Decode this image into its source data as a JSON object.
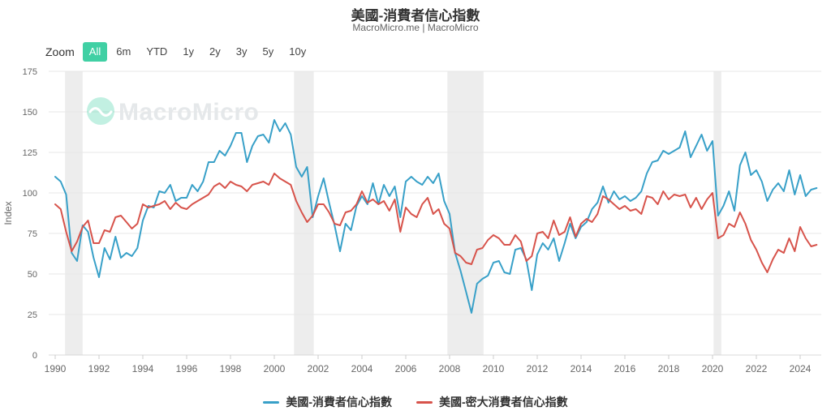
{
  "header": {
    "title": "美國-消費者信心指數",
    "subtitle": "MacroMicro.me | MacroMicro"
  },
  "toolbar": {
    "zoom_label": "Zoom",
    "ranges": [
      {
        "label": "All",
        "active": true
      },
      {
        "label": "6m",
        "active": false
      },
      {
        "label": "YTD",
        "active": false
      },
      {
        "label": "1y",
        "active": false
      },
      {
        "label": "2y",
        "active": false
      },
      {
        "label": "3y",
        "active": false
      },
      {
        "label": "5y",
        "active": false
      },
      {
        "label": "10y",
        "active": false
      }
    ],
    "active_button_color": "#40D0A4"
  },
  "watermark": {
    "text": "MacroMicro",
    "icon": "macromicro-wave-icon",
    "logo_color": "#40D0A4",
    "text_color": "#e5e8ea"
  },
  "colors": {
    "grid": "#e7e7e7",
    "axis_line": "#d8d8d8",
    "tick": "#cccccc",
    "axis_text": "#666666",
    "recession_band": "#ededed"
  },
  "chart_data": {
    "type": "line",
    "title": "美國-消費者信心指數",
    "xlabel": "",
    "ylabel": "Index",
    "ylim": [
      0,
      175
    ],
    "yticks": [
      0,
      25,
      50,
      75,
      100,
      125,
      150,
      175
    ],
    "xticks": [
      1990,
      1992,
      1994,
      1996,
      1998,
      2000,
      2002,
      2004,
      2006,
      2008,
      2010,
      2012,
      2014,
      2016,
      2018,
      2020,
      2022,
      2024
    ],
    "x_start": 1990.0,
    "x_step": 0.25,
    "x_end": 2024.75,
    "grid": "horizontal",
    "legend_position": "bottom",
    "recession_bands": [
      [
        1990.45,
        1991.25
      ],
      [
        2000.9,
        2001.8
      ],
      [
        2007.9,
        2009.55
      ],
      [
        2020.05,
        2020.4
      ]
    ],
    "series": [
      {
        "name": "美國-消費者信心指數",
        "color": "#38A0C8",
        "values": [
          110,
          107,
          99,
          63,
          58,
          80,
          76,
          60,
          48,
          66,
          59,
          73,
          60,
          63,
          61,
          66,
          83,
          92,
          91,
          101,
          100,
          105,
          95,
          97,
          97,
          105,
          101,
          107,
          119,
          119,
          126,
          123,
          129,
          137,
          137,
          119,
          129,
          135,
          136,
          131,
          145,
          138,
          143,
          136,
          116,
          110,
          116,
          85,
          98,
          109,
          94,
          80,
          64,
          81,
          77,
          92,
          98,
          93,
          106,
          93,
          105,
          98,
          104,
          85,
          107,
          110,
          107,
          105,
          110,
          106,
          112,
          95,
          87,
          63,
          52,
          39,
          26,
          44,
          47,
          49,
          57,
          58,
          51,
          50,
          65,
          66,
          59,
          40,
          62,
          69,
          65,
          72,
          58,
          69,
          81,
          72,
          79,
          82,
          90,
          94,
          104,
          94,
          101,
          96,
          98,
          95,
          97,
          101,
          112,
          119,
          120,
          126,
          124,
          126,
          128,
          138,
          122,
          129,
          136,
          126,
          132,
          86,
          92,
          101,
          89,
          117,
          125,
          111,
          114,
          107,
          95,
          102,
          106,
          101,
          114,
          99,
          111,
          98,
          102,
          103
        ]
      },
      {
        "name": "美國-密大消費者信心指數",
        "color": "#D7534B",
        "values": [
          93,
          90,
          76,
          64,
          70,
          79,
          83,
          69,
          69,
          77,
          76,
          85,
          86,
          82,
          78,
          81,
          93,
          91,
          92,
          93,
          95,
          90,
          94,
          91,
          90,
          93,
          95,
          97,
          99,
          104,
          106,
          103,
          107,
          105,
          104,
          101,
          105,
          106,
          107,
          105,
          112,
          109,
          107,
          105,
          95,
          88,
          82,
          86,
          93,
          93,
          88,
          81,
          80,
          88,
          89,
          93,
          101,
          94,
          96,
          93,
          95,
          89,
          96,
          76,
          91,
          87,
          85,
          93,
          97,
          87,
          90,
          81,
          78,
          63,
          61,
          57,
          56,
          65,
          66,
          71,
          74,
          72,
          68,
          68,
          74,
          70,
          58,
          61,
          75,
          76,
          72,
          83,
          74,
          76,
          85,
          73,
          81,
          84,
          82,
          87,
          98,
          96,
          93,
          90,
          92,
          89,
          90,
          87,
          98,
          97,
          93,
          101,
          96,
          99,
          98,
          99,
          91,
          97,
          90,
          96,
          100,
          72,
          74,
          81,
          79,
          88,
          81,
          71,
          65,
          57,
          51,
          59,
          65,
          63,
          72,
          64,
          79,
          72,
          67,
          68
        ]
      }
    ]
  }
}
